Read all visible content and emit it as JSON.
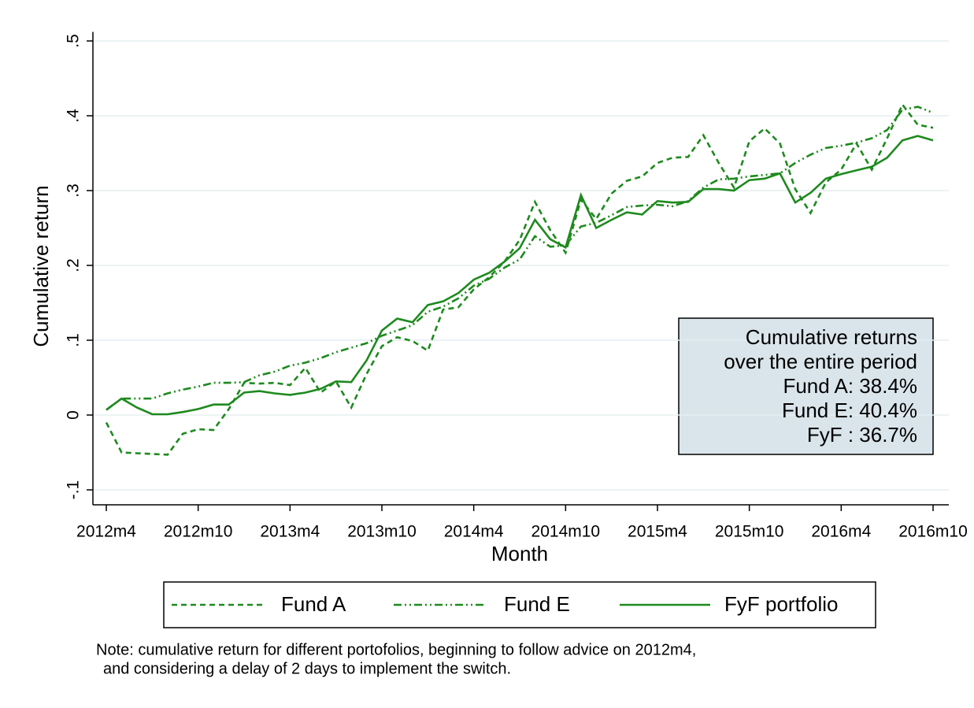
{
  "chart_data": {
    "type": "line",
    "x_label": "Month",
    "y_label": "Cumulative return",
    "categories": [
      "2012m4",
      null,
      null,
      null,
      null,
      null,
      "2012m10",
      null,
      null,
      null,
      null,
      null,
      "2013m4",
      null,
      null,
      null,
      null,
      null,
      "2013m10",
      null,
      null,
      null,
      null,
      null,
      "2014m4",
      null,
      null,
      null,
      null,
      null,
      "2014m10",
      null,
      null,
      null,
      null,
      null,
      "2015m4",
      null,
      null,
      null,
      null,
      null,
      "2015m10",
      null,
      null,
      null,
      null,
      null,
      "2016m4",
      null,
      null,
      null,
      null,
      null,
      "2016m10"
    ],
    "series": [
      {
        "name": "Fund A",
        "color": "#1e8a1e",
        "line_style": "dash",
        "values": [
          -0.01,
          -0.05,
          -0.051,
          -0.052,
          -0.053,
          -0.025,
          -0.019,
          -0.02,
          0.008,
          0.043,
          0.042,
          0.043,
          0.04,
          0.063,
          0.03,
          0.045,
          0.01,
          0.055,
          0.092,
          0.104,
          0.099,
          0.086,
          0.141,
          0.144,
          0.168,
          0.184,
          0.205,
          0.234,
          0.285,
          0.247,
          0.217,
          0.288,
          0.262,
          0.296,
          0.313,
          0.319,
          0.337,
          0.344,
          0.345,
          0.374,
          0.337,
          0.304,
          0.366,
          0.383,
          0.363,
          0.302,
          0.27,
          0.311,
          0.328,
          0.363,
          0.328,
          0.37,
          0.415,
          0.388,
          0.384
        ]
      },
      {
        "name": "Fund E",
        "color": "#1e8a1e",
        "line_style": "dashdot",
        "values": [
          0.007,
          0.022,
          0.022,
          0.022,
          0.029,
          0.034,
          0.038,
          0.043,
          0.043,
          0.044,
          0.053,
          0.058,
          0.066,
          0.07,
          0.076,
          0.084,
          0.09,
          0.096,
          0.106,
          0.113,
          0.12,
          0.138,
          0.145,
          0.156,
          0.173,
          0.182,
          0.197,
          0.208,
          0.239,
          0.225,
          0.227,
          0.252,
          0.257,
          0.267,
          0.278,
          0.28,
          0.281,
          0.279,
          0.286,
          0.304,
          0.315,
          0.316,
          0.319,
          0.321,
          0.323,
          0.337,
          0.348,
          0.357,
          0.36,
          0.364,
          0.37,
          0.381,
          0.408,
          0.412,
          0.404
        ]
      },
      {
        "name": "FyF portfolio",
        "color": "#1e8a1e",
        "line_style": "solid",
        "values": [
          0.007,
          0.022,
          0.01,
          0.001,
          0.001,
          0.004,
          0.008,
          0.014,
          0.014,
          0.03,
          0.032,
          0.029,
          0.027,
          0.03,
          0.035,
          0.045,
          0.044,
          0.073,
          0.113,
          0.129,
          0.124,
          0.147,
          0.152,
          0.163,
          0.181,
          0.19,
          0.205,
          0.223,
          0.261,
          0.235,
          0.224,
          0.294,
          0.25,
          0.261,
          0.271,
          0.268,
          0.286,
          0.284,
          0.285,
          0.302,
          0.302,
          0.3,
          0.314,
          0.316,
          0.323,
          0.284,
          0.297,
          0.316,
          0.322,
          0.327,
          0.332,
          0.344,
          0.367,
          0.373,
          0.367
        ]
      }
    ],
    "ylim": [
      -0.12,
      0.51
    ],
    "yticks": [
      {
        "value": -0.1,
        "label": "-.1"
      },
      0,
      {
        "value": 0.1,
        "label": ".1"
      },
      {
        "value": 0.2,
        "label": ".2"
      },
      {
        "value": 0.3,
        "label": ".3"
      },
      {
        "value": 0.4,
        "label": ".4"
      },
      {
        "value": 0.5,
        "label": ".5"
      }
    ],
    "grid": true,
    "annotation": [
      "Cumulative returns",
      "over the entire period",
      "Fund A: 38.4%",
      "Fund E: 40.4%",
      "FyF : 36.7%"
    ],
    "note": [
      "Note: cumulative return for different portofolios, beginning to follow advice on 2012m4,",
      "and considering a delay of 2 days to implement the switch."
    ]
  }
}
